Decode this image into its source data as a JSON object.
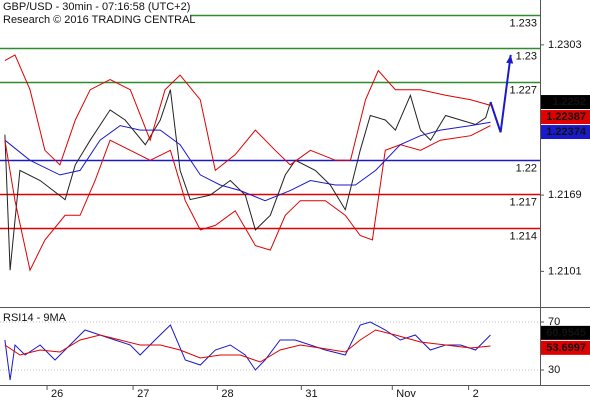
{
  "chart_data": [
    {
      "type": "line",
      "title": "GBP/USD - 30min - 07:16:58 (UTC+2)",
      "subtitle": "Research © 2016 TRADING CENTRAL",
      "xlim": [
        0,
        155
      ],
      "ylim": [
        1.2071,
        1.2343
      ],
      "yticks": [
        1.2303,
        1.2169,
        1.2101
      ],
      "xticks": [
        {
          "value": 13.5,
          "label": "26"
        },
        {
          "value": 38.2,
          "label": "27"
        },
        {
          "value": 62.4,
          "label": "28"
        },
        {
          "value": 86.5,
          "label": "31"
        },
        {
          "value": 112.6,
          "label": "Nov"
        },
        {
          "value": 134.5,
          "label": "2"
        }
      ],
      "levels": [
        {
          "value": 1.233,
          "color": "#2e8b2e"
        },
        {
          "value": 1.23,
          "color": "#2e8b2e"
        },
        {
          "value": 1.227,
          "color": "#2e8b2e"
        },
        {
          "value": 1.22,
          "color": "#1a1acc"
        },
        {
          "value": 1.217,
          "color": "#e00000"
        },
        {
          "value": 1.214,
          "color": "#e00000"
        }
      ],
      "last_values": [
        {
          "value": 1.2252,
          "color": "#000000"
        },
        {
          "value": 1.22387,
          "color": "#e00000"
        },
        {
          "value": 1.22374,
          "color": "#1a1acc"
        }
      ],
      "series": [
        {
          "color": "#222222",
          "x": [
            1.4,
            2.9,
            5.7,
            11.5,
            18.7,
            21.6,
            25.9,
            31.6,
            35.9,
            41.7,
            46,
            48.9,
            51.7,
            54.6,
            60.3,
            66.1,
            70.4,
            73.3,
            77.6,
            81.9,
            84.8,
            90.5,
            94.8,
            99.1,
            103.4,
            106.3,
            110.6,
            113.5,
            117.8,
            120.7,
            123.6,
            127.9,
            132.2,
            136.5,
            139.4,
            140.8
          ],
          "values": [
            1.2223,
            1.2102,
            1.2191,
            1.2182,
            1.2165,
            1.2196,
            1.2218,
            1.2245,
            1.2236,
            1.2214,
            1.2236,
            1.2263,
            1.2191,
            1.2165,
            1.2169,
            1.2182,
            1.2169,
            1.2138,
            1.2151,
            1.2187,
            1.22,
            1.2191,
            1.2178,
            1.2156,
            1.2209,
            1.224,
            1.2236,
            1.2227,
            1.2258,
            1.2227,
            1.2218,
            1.224,
            1.2236,
            1.2232,
            1.2238,
            1.2252
          ]
        },
        {
          "color": "#e00000",
          "x": [
            1.4,
            4.3,
            8.6,
            12.9,
            17.2,
            21.6,
            25.9,
            31.6,
            37.4,
            43.1,
            47.4,
            51.7,
            57.5,
            61.8,
            67.5,
            73.3,
            79,
            83.3,
            89.1,
            96.3,
            100.6,
            104.9,
            108.6,
            113.5,
            120.7,
            127.9,
            135.1,
            140.8
          ],
          "values": [
            1.2289,
            1.2294,
            1.2263,
            1.2209,
            1.2196,
            1.2236,
            1.2263,
            1.2272,
            1.2263,
            1.2218,
            1.2263,
            1.2276,
            1.2254,
            1.2191,
            1.2205,
            1.2227,
            1.2209,
            1.2196,
            1.2209,
            1.22,
            1.22,
            1.2254,
            1.228,
            1.2263,
            1.2263,
            1.2258,
            1.2254,
            1.2249
          ]
        },
        {
          "color": "#e00000",
          "x": [
            1.4,
            4.3,
            8.6,
            12.9,
            18.7,
            23,
            27.3,
            31.6,
            37.4,
            43.1,
            48.9,
            53.2,
            57.5,
            61.8,
            67.5,
            73.3,
            77.6,
            81.9,
            86.2,
            93.4,
            99.1,
            103.4,
            106.9,
            110.6,
            114.9,
            120.7,
            126.4,
            135.1,
            140.8
          ],
          "values": [
            1.2218,
            1.2164,
            1.2102,
            1.2129,
            1.2151,
            1.2151,
            1.2182,
            1.2218,
            1.2209,
            1.22,
            1.2209,
            1.2164,
            1.2138,
            1.2142,
            1.2155,
            1.2124,
            1.212,
            1.2151,
            1.2164,
            1.2164,
            1.2151,
            1.2133,
            1.2129,
            1.2209,
            1.2214,
            1.2209,
            1.2218,
            1.2222,
            1.2231
          ]
        },
        {
          "color": "#1a1acc",
          "x": [
            1.4,
            8.6,
            17.2,
            23,
            28.7,
            34.5,
            40.2,
            46,
            51.7,
            57.5,
            63.2,
            69,
            76.1,
            83.3,
            89.1,
            96.3,
            102,
            107.8,
            114.9,
            120.7,
            126.4,
            135.1,
            140.8
          ],
          "values": [
            1.2218,
            1.22,
            1.2187,
            1.2191,
            1.2218,
            1.2231,
            1.2227,
            1.2227,
            1.2214,
            1.2187,
            1.2178,
            1.2173,
            1.2164,
            1.2173,
            1.2182,
            1.2178,
            1.2178,
            1.2191,
            1.2214,
            1.2222,
            1.2227,
            1.2231,
            1.2234
          ]
        },
        {
          "color": "#1a1acc",
          "arrow": true,
          "x": [
            140.8,
            143.7,
            146.6
          ],
          "values": [
            1.2252,
            1.2225,
            1.2294
          ]
        }
      ]
    },
    {
      "type": "line",
      "title": "RSI14 - 9MA",
      "xlim": [
        0,
        155
      ],
      "ylim": [
        17.5,
        80
      ],
      "yticks": [
        70,
        30
      ],
      "last_values": [
        {
          "value": 60.9545,
          "color": "#000000"
        },
        {
          "value": 53.6997,
          "color": "#e00000"
        }
      ],
      "series": [
        {
          "color": "#1a1acc",
          "x": [
            1.4,
            2.9,
            4.3,
            7.2,
            11.5,
            15.8,
            20.1,
            24.4,
            28.7,
            33,
            37.4,
            40.2,
            44.5,
            48.9,
            53.2,
            57.5,
            61.8,
            66.1,
            70.4,
            73.3,
            76.1,
            80.4,
            84.7,
            89.1,
            93.4,
            99.1,
            103.4,
            106.3,
            110.6,
            114.9,
            119.2,
            123.5,
            127.9,
            132.2,
            136.5,
            140.8
          ],
          "values": [
            55,
            21.7,
            50.8,
            42.5,
            50.8,
            38.3,
            50.8,
            63.3,
            59.2,
            55,
            50.8,
            42.5,
            55,
            67.5,
            38.3,
            34.2,
            46.7,
            50.8,
            42.5,
            30,
            38.3,
            55,
            55,
            50.8,
            46.7,
            42.5,
            67.5,
            70,
            63.3,
            55,
            59.2,
            46.7,
            50.8,
            50.8,
            46.7,
            59.2
          ]
        },
        {
          "color": "#e00000",
          "x": [
            1.4,
            5.7,
            11.5,
            17.2,
            23,
            28.7,
            34.5,
            40.2,
            46,
            51.7,
            57.5,
            63.2,
            69,
            74.7,
            80.4,
            86.2,
            91.9,
            99.1,
            103.4,
            107.8,
            113.5,
            120.7,
            127.9,
            135.1,
            140.8
          ],
          "values": [
            50.8,
            42.5,
            46.7,
            45,
            55,
            59.2,
            55,
            50.8,
            50.8,
            46.7,
            40,
            42.5,
            42.5,
            36.7,
            46.7,
            50.8,
            48.3,
            45,
            55,
            63.3,
            59.2,
            53.3,
            50.8,
            48.3,
            50
          ]
        }
      ]
    }
  ]
}
